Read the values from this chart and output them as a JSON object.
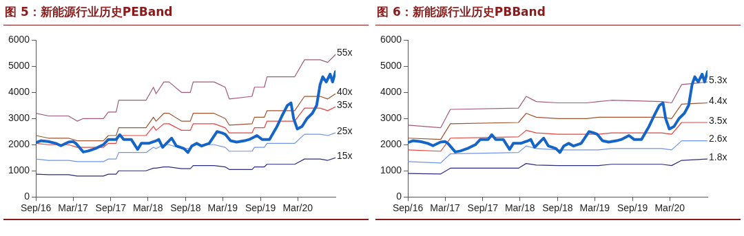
{
  "chart_data": [
    {
      "type": "line",
      "title": "图 5：新能源行业历史PEBand",
      "x": [
        "2016-09-01",
        "2016-11-01",
        "2017-02-07",
        "2017-03-21",
        "2017-04-20",
        "2017-07-27",
        "2017-08-20",
        "2017-09-27",
        "2017-10-10",
        "2018-02-20",
        "2018-03-28",
        "2018-04-10",
        "2018-05-18",
        "2018-06-12",
        "2018-08-12",
        "2018-09-24",
        "2018-10-08",
        "2019-01-18",
        "2019-03-13",
        "2019-04-02",
        "2019-07-22",
        "2019-08-03",
        "2019-09-20",
        "2019-10-03",
        "2020-02-15",
        "2020-04-03",
        "2020-06-18",
        "2020-07-25",
        "2020-09-01"
      ],
      "xlim": [
        "2016-09-01",
        "2020-09-01"
      ],
      "xticks": [
        {
          "value": "2016-09-01",
          "label": "Sep/16"
        },
        {
          "value": "2017-03-01",
          "label": "Mar/17"
        },
        {
          "value": "2017-09-01",
          "label": "Sep/17"
        },
        {
          "value": "2018-03-01",
          "label": "Mar/18"
        },
        {
          "value": "2018-09-01",
          "label": "Sep/18"
        },
        {
          "value": "2019-03-01",
          "label": "Mar/19"
        },
        {
          "value": "2019-09-01",
          "label": "Sep/19"
        },
        {
          "value": "2020-03-01",
          "label": "Mar/20"
        }
      ],
      "ylim": [
        0,
        6000
      ],
      "yticks": [
        0,
        1000,
        2000,
        3000,
        4000,
        5000,
        6000
      ],
      "series": [
        {
          "name": "55x",
          "color": "#a3587a",
          "values": [
            3200,
            3100,
            3100,
            2900,
            3000,
            3000,
            3250,
            3250,
            3700,
            3700,
            4200,
            3950,
            4400,
            4400,
            4000,
            4000,
            4400,
            4400,
            4200,
            3750,
            3850,
            4200,
            4200,
            4600,
            4600,
            5250,
            5250,
            5150,
            5450
          ]
        },
        {
          "name": "40x",
          "color": "#a0522d",
          "values": [
            2350,
            2250,
            2250,
            2150,
            2150,
            2150,
            2350,
            2350,
            2650,
            2650,
            3050,
            2900,
            3200,
            3200,
            2900,
            2900,
            3200,
            3200,
            3000,
            2750,
            2800,
            3050,
            3050,
            3300,
            3300,
            3850,
            3850,
            3750,
            3950
          ]
        },
        {
          "name": "35x",
          "color": "#e8413c",
          "values": [
            2050,
            2000,
            2000,
            1900,
            1900,
            1900,
            2050,
            2050,
            2350,
            2350,
            2700,
            2550,
            2800,
            2800,
            2550,
            2550,
            2800,
            2800,
            2650,
            2450,
            2450,
            2650,
            2650,
            2900,
            2900,
            3400,
            3400,
            3300,
            3450
          ]
        },
        {
          "name": "25x",
          "color": "#6f94ea",
          "values": [
            1450,
            1400,
            1400,
            1350,
            1350,
            1350,
            1450,
            1450,
            1700,
            1700,
            1900,
            1850,
            2000,
            2000,
            1850,
            1850,
            2000,
            2000,
            1900,
            1750,
            1750,
            1900,
            1900,
            2050,
            2050,
            2400,
            2400,
            2350,
            2450
          ]
        },
        {
          "name": "15x",
          "color": "#2b2b7e",
          "values": [
            870,
            850,
            850,
            800,
            800,
            800,
            870,
            870,
            1000,
            1000,
            1100,
            1100,
            1150,
            1150,
            1080,
            1080,
            1200,
            1200,
            1150,
            1050,
            1050,
            1150,
            1150,
            1250,
            1250,
            1450,
            1450,
            1400,
            1500
          ]
        },
        {
          "color": "#1565c8",
          "x": [
            "2016-09-01",
            "2016-09-25",
            "2016-11-01",
            "2016-12-07",
            "2017-01-01",
            "2017-02-07",
            "2017-03-01",
            "2017-03-15",
            "2017-04-20",
            "2017-05-15",
            "2017-06-20",
            "2017-07-27",
            "2017-08-20",
            "2017-09-27",
            "2017-10-15",
            "2017-11-03",
            "2017-12-10",
            "2018-01-10",
            "2018-01-28",
            "2018-03-05",
            "2018-04-10",
            "2018-04-23",
            "2018-05-12",
            "2018-06-12",
            "2018-06-25",
            "2018-07-18",
            "2018-08-24",
            "2018-09-12",
            "2018-10-01",
            "2018-10-25",
            "2018-11-18",
            "2018-12-25",
            "2019-02-01",
            "2019-02-25",
            "2019-03-13",
            "2019-04-08",
            "2019-05-08",
            "2019-06-15",
            "2019-07-09",
            "2019-08-15",
            "2019-09-09",
            "2019-10-15",
            "2019-11-21",
            "2019-12-15",
            "2020-01-10",
            "2020-01-28",
            "2020-02-10",
            "2020-02-28",
            "2020-03-22",
            "2020-04-15",
            "2020-05-11",
            "2020-06-01",
            "2020-06-18",
            "2020-07-01",
            "2020-07-18",
            "2020-08-06",
            "2020-08-18",
            "2020-09-01"
          ],
          "values": [
            2080,
            2150,
            2120,
            2050,
            1960,
            2100,
            2120,
            2050,
            1720,
            1760,
            1860,
            2000,
            2200,
            2200,
            2380,
            2200,
            2200,
            1820,
            2050,
            2050,
            2150,
            2200,
            1900,
            2150,
            2250,
            1950,
            1850,
            1700,
            1950,
            2050,
            1950,
            2050,
            2500,
            2450,
            2400,
            2150,
            2100,
            2150,
            2200,
            2350,
            2200,
            2200,
            2700,
            3100,
            3500,
            3600,
            3000,
            2600,
            2700,
            3000,
            3200,
            3500,
            4300,
            4600,
            4400,
            4700,
            4400,
            4800
          ]
        }
      ]
    },
    {
      "type": "line",
      "title": "图 6：新能源行业历史PBBand",
      "x": [
        "2016-09-01",
        "2017-02-08",
        "2017-03-27",
        "2018-02-22",
        "2018-04-01",
        "2018-05-20",
        "2018-09-05",
        "2019-01-20",
        "2019-03-20",
        "2019-05-22",
        "2020-01-22",
        "2020-03-10",
        "2020-04-28",
        "2020-09-01"
      ],
      "xlim": [
        "2016-09-01",
        "2020-09-01"
      ],
      "xticks": [
        {
          "value": "2016-09-01",
          "label": "Sep/16"
        },
        {
          "value": "2017-03-01",
          "label": "Mar/17"
        },
        {
          "value": "2017-09-01",
          "label": "Sep/17"
        },
        {
          "value": "2018-03-01",
          "label": "Mar/18"
        },
        {
          "value": "2018-09-01",
          "label": "Sep/18"
        },
        {
          "value": "2019-03-01",
          "label": "Mar/19"
        },
        {
          "value": "2019-09-01",
          "label": "Sep/19"
        },
        {
          "value": "2020-03-01",
          "label": "Mar/20"
        }
      ],
      "ylim": [
        0,
        6000
      ],
      "yticks": [
        0,
        1000,
        2000,
        3000,
        4000,
        5000,
        6000
      ],
      "series": [
        {
          "name": "5.3x",
          "color": "#a3587a",
          "values": [
            2750,
            2650,
            3350,
            3400,
            3850,
            3650,
            3600,
            3600,
            3650,
            3700,
            3650,
            3600,
            4300,
            4400
          ]
        },
        {
          "name": "4.4x",
          "color": "#a0522d",
          "values": [
            2250,
            2200,
            2800,
            2850,
            3200,
            3050,
            3000,
            3000,
            3050,
            3050,
            3050,
            3000,
            3550,
            3600
          ]
        },
        {
          "name": "3.5x",
          "color": "#e8413c",
          "values": [
            1800,
            1750,
            2250,
            2300,
            2550,
            2450,
            2400,
            2400,
            2400,
            2450,
            2450,
            2400,
            2850,
            2850
          ]
        },
        {
          "name": "2.6x",
          "color": "#6f94ea",
          "values": [
            1350,
            1300,
            1650,
            1700,
            1950,
            1850,
            1800,
            1800,
            1800,
            1850,
            1850,
            1800,
            2150,
            2150
          ]
        },
        {
          "name": "1.8x",
          "color": "#2b2b7e",
          "values": [
            900,
            880,
            1100,
            1100,
            1280,
            1220,
            1200,
            1200,
            1200,
            1250,
            1250,
            1200,
            1400,
            1450
          ]
        },
        {
          "color": "#1565c8",
          "x": [
            "2016-09-01",
            "2016-09-25",
            "2016-11-01",
            "2016-12-07",
            "2017-01-01",
            "2017-02-07",
            "2017-03-01",
            "2017-03-15",
            "2017-04-20",
            "2017-05-15",
            "2017-06-20",
            "2017-07-27",
            "2017-08-20",
            "2017-09-27",
            "2017-10-15",
            "2017-11-03",
            "2017-12-10",
            "2018-01-10",
            "2018-01-28",
            "2018-03-05",
            "2018-04-10",
            "2018-04-23",
            "2018-05-12",
            "2018-06-12",
            "2018-06-25",
            "2018-07-18",
            "2018-08-24",
            "2018-09-12",
            "2018-10-01",
            "2018-10-25",
            "2018-11-18",
            "2018-12-25",
            "2019-02-01",
            "2019-02-25",
            "2019-03-13",
            "2019-04-08",
            "2019-05-08",
            "2019-06-15",
            "2019-07-09",
            "2019-08-15",
            "2019-09-09",
            "2019-10-15",
            "2019-11-21",
            "2019-12-15",
            "2020-01-10",
            "2020-01-28",
            "2020-02-10",
            "2020-02-28",
            "2020-03-22",
            "2020-04-15",
            "2020-05-11",
            "2020-06-01",
            "2020-06-18",
            "2020-07-01",
            "2020-07-18",
            "2020-08-06",
            "2020-08-18",
            "2020-09-01"
          ],
          "values": [
            2080,
            2150,
            2120,
            2050,
            1960,
            2100,
            2120,
            2050,
            1720,
            1760,
            1860,
            2000,
            2200,
            2200,
            2380,
            2200,
            2200,
            1820,
            2050,
            2050,
            2150,
            2200,
            1900,
            2150,
            2250,
            1950,
            1850,
            1700,
            1950,
            2050,
            1950,
            2050,
            2500,
            2450,
            2400,
            2150,
            2100,
            2150,
            2200,
            2350,
            2200,
            2200,
            2700,
            3100,
            3500,
            3600,
            3000,
            2600,
            2700,
            3000,
            3200,
            3500,
            4300,
            4600,
            4400,
            4700,
            4400,
            4800
          ]
        }
      ]
    }
  ]
}
